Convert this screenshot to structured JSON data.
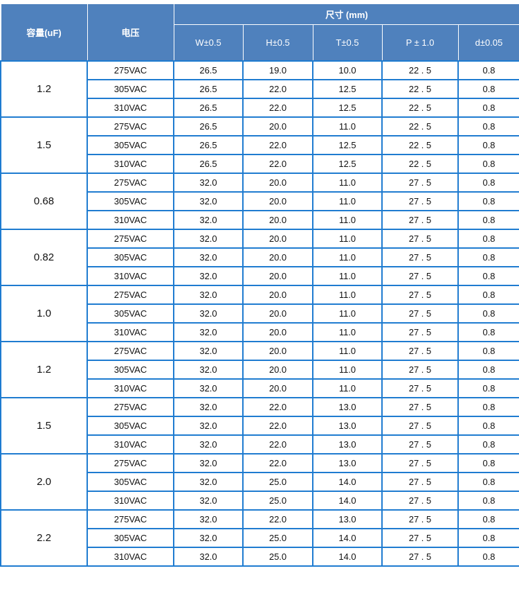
{
  "colors": {
    "header_bg": "#4f81bd",
    "border": "#1e7bd0"
  },
  "header": {
    "capacity": "容量(uF)",
    "voltage": "电压",
    "size": "尺寸 (mm)",
    "dims": [
      "W±0.5",
      "H±0.5",
      "T±0.5",
      "P ± 1.0",
      "d±0.05"
    ]
  },
  "groups": [
    {
      "cap": "1.2",
      "rows": [
        [
          "275VAC",
          "26.5",
          "19.0",
          "10.0",
          "22 . 5",
          "0.8"
        ],
        [
          "305VAC",
          "26.5",
          "22.0",
          "12.5",
          "22 . 5",
          "0.8"
        ],
        [
          "310VAC",
          "26.5",
          "22.0",
          "12.5",
          "22 . 5",
          "0.8"
        ]
      ]
    },
    {
      "cap": "1.5",
      "rows": [
        [
          "275VAC",
          "26.5",
          "20.0",
          "11.0",
          "22 . 5",
          "0.8"
        ],
        [
          "305VAC",
          "26.5",
          "22.0",
          "12.5",
          "22 . 5",
          "0.8"
        ],
        [
          "310VAC",
          "26.5",
          "22.0",
          "12.5",
          "22 . 5",
          "0.8"
        ]
      ]
    },
    {
      "cap": "0.68",
      "rows": [
        [
          "275VAC",
          "32.0",
          "20.0",
          "11.0",
          "27 . 5",
          "0.8"
        ],
        [
          "305VAC",
          "32.0",
          "20.0",
          "11.0",
          "27 . 5",
          "0.8"
        ],
        [
          "310VAC",
          "32.0",
          "20.0",
          "11.0",
          "27 . 5",
          "0.8"
        ]
      ]
    },
    {
      "cap": "0.82",
      "rows": [
        [
          "275VAC",
          "32.0",
          "20.0",
          "11.0",
          "27 . 5",
          "0.8"
        ],
        [
          "305VAC",
          "32.0",
          "20.0",
          "11.0",
          "27 . 5",
          "0.8"
        ],
        [
          "310VAC",
          "32.0",
          "20.0",
          "11.0",
          "27 . 5",
          "0.8"
        ]
      ]
    },
    {
      "cap": "1.0",
      "rows": [
        [
          "275VAC",
          "32.0",
          "20.0",
          "11.0",
          "27 . 5",
          "0.8"
        ],
        [
          "305VAC",
          "32.0",
          "20.0",
          "11.0",
          "27 . 5",
          "0.8"
        ],
        [
          "310VAC",
          "32.0",
          "20.0",
          "11.0",
          "27 . 5",
          "0.8"
        ]
      ]
    },
    {
      "cap": "1.2",
      "rows": [
        [
          "275VAC",
          "32.0",
          "20.0",
          "11.0",
          "27 . 5",
          "0.8"
        ],
        [
          "305VAC",
          "32.0",
          "20.0",
          "11.0",
          "27 . 5",
          "0.8"
        ],
        [
          "310VAC",
          "32.0",
          "20.0",
          "11.0",
          "27 . 5",
          "0.8"
        ]
      ]
    },
    {
      "cap": "1.5",
      "rows": [
        [
          "275VAC",
          "32.0",
          "22.0",
          "13.0",
          "27 . 5",
          "0.8"
        ],
        [
          "305VAC",
          "32.0",
          "22.0",
          "13.0",
          "27 . 5",
          "0.8"
        ],
        [
          "310VAC",
          "32.0",
          "22.0",
          "13.0",
          "27 . 5",
          "0.8"
        ]
      ]
    },
    {
      "cap": "2.0",
      "rows": [
        [
          "275VAC",
          "32.0",
          "22.0",
          "13.0",
          "27 . 5",
          "0.8"
        ],
        [
          "305VAC",
          "32.0",
          "25.0",
          "14.0",
          "27 . 5",
          "0.8"
        ],
        [
          "310VAC",
          "32.0",
          "25.0",
          "14.0",
          "27 . 5",
          "0.8"
        ]
      ]
    },
    {
      "cap": "2.2",
      "rows": [
        [
          "275VAC",
          "32.0",
          "22.0",
          "13.0",
          "27 . 5",
          "0.8"
        ],
        [
          "305VAC",
          "32.0",
          "25.0",
          "14.0",
          "27 . 5",
          "0.8"
        ],
        [
          "310VAC",
          "32.0",
          "25.0",
          "14.0",
          "27 . 5",
          "0.8"
        ]
      ]
    }
  ]
}
